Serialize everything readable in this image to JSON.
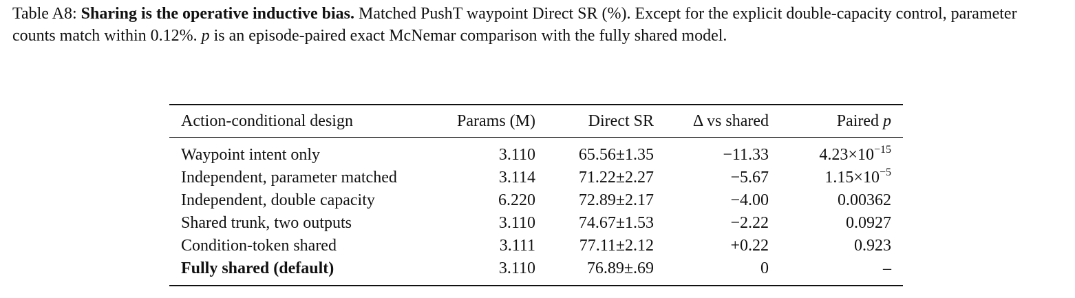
{
  "caption": {
    "label": "Table A8:",
    "title": "Sharing is the operative inductive bias.",
    "text": [
      "Matched PushT waypoint Direct SR (%). Except for the explicit double-capacity control, parameter counts match within 0.12%.",
      "p",
      "is an episode-paired exact McNemar comparison with the fully shared model."
    ]
  },
  "table": {
    "header": [
      "Action-conditional design",
      "Params (M)",
      "Direct SR",
      "Δ vs shared",
      [
        "Paired",
        "p"
      ]
    ],
    "rows": [
      [
        "Waypoint intent only",
        "3.110",
        "65.56±1.35",
        "−11.33",
        {
          "mantissa": "4.23×10",
          "exponent": "−15"
        }
      ],
      [
        "Independent, parameter matched",
        "3.114",
        "71.22±2.27",
        "−5.67",
        {
          "mantissa": "1.15×10",
          "exponent": "−5"
        }
      ],
      [
        "Independent, double capacity",
        "6.220",
        "72.89±2.17",
        "−4.00",
        "0.00362"
      ],
      [
        "Shared trunk, two outputs",
        "3.110",
        "74.67±1.53",
        "−2.22",
        "0.0927"
      ],
      [
        "Condition-token shared",
        "3.111",
        "77.11±2.12",
        "+0.22",
        "0.923"
      ],
      [
        "Fully shared (default)",
        "3.110",
        "76.89±.69",
        "0",
        "–"
      ]
    ]
  }
}
